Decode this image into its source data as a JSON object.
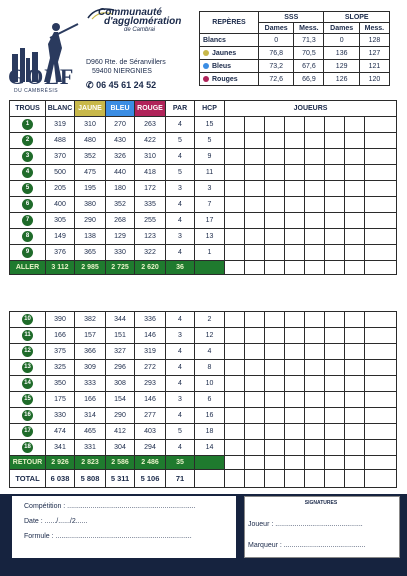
{
  "header": {
    "logo_word": "GOLF",
    "logo_sub": "DU CAMBRÉSIS",
    "community_line1": "Communauté",
    "community_line2": "d'agglomération",
    "community_line3": "de Cambrai",
    "address_line1": "D960 Rte. de Séranvillers",
    "address_line2": "59400 NIERGNIES",
    "phone": "06 45 61 24 52"
  },
  "reperes": {
    "title": "REPÈRES",
    "sss_label": "SSS",
    "slope_label": "SLOPE",
    "dames": "Dames",
    "mess": "Mess.",
    "rows": [
      {
        "name": "Blancs",
        "color": "",
        "sss_dames": "0",
        "sss_mess": "71,3",
        "slope_dames": "0",
        "slope_mess": "128"
      },
      {
        "name": "Jaunes",
        "color": "#c8b84a",
        "sss_dames": "76,8",
        "sss_mess": "70,5",
        "slope_dames": "136",
        "slope_mess": "127"
      },
      {
        "name": "Bleus",
        "color": "#3b8de3",
        "sss_dames": "73,2",
        "sss_mess": "67,6",
        "slope_dames": "129",
        "slope_mess": "121"
      },
      {
        "name": "Rouges",
        "color": "#b0245a",
        "sss_dames": "72,6",
        "sss_mess": "66,9",
        "slope_dames": "126",
        "slope_mess": "120"
      }
    ]
  },
  "scorecard": {
    "headers": {
      "trous": "TROUS",
      "blanc": "BLANC",
      "jaune": "JAUNE",
      "bleu": "BLEU",
      "rouge": "ROUGE",
      "par": "PAR",
      "hcp": "HCP",
      "joueurs": "JOUEURS"
    },
    "front": [
      {
        "hole": "1",
        "blanc": "319",
        "jaune": "310",
        "bleu": "270",
        "rouge": "263",
        "par": "4",
        "hcp": "15"
      },
      {
        "hole": "2",
        "blanc": "488",
        "jaune": "480",
        "bleu": "430",
        "rouge": "422",
        "par": "5",
        "hcp": "5"
      },
      {
        "hole": "3",
        "blanc": "370",
        "jaune": "352",
        "bleu": "326",
        "rouge": "310",
        "par": "4",
        "hcp": "9"
      },
      {
        "hole": "4",
        "blanc": "500",
        "jaune": "475",
        "bleu": "440",
        "rouge": "418",
        "par": "5",
        "hcp": "11"
      },
      {
        "hole": "5",
        "blanc": "205",
        "jaune": "195",
        "bleu": "180",
        "rouge": "172",
        "par": "3",
        "hcp": "3"
      },
      {
        "hole": "6",
        "blanc": "400",
        "jaune": "380",
        "bleu": "352",
        "rouge": "335",
        "par": "4",
        "hcp": "7"
      },
      {
        "hole": "7",
        "blanc": "305",
        "jaune": "290",
        "bleu": "268",
        "rouge": "255",
        "par": "4",
        "hcp": "17"
      },
      {
        "hole": "8",
        "blanc": "149",
        "jaune": "138",
        "bleu": "129",
        "rouge": "123",
        "par": "3",
        "hcp": "13"
      },
      {
        "hole": "9",
        "blanc": "376",
        "jaune": "365",
        "bleu": "330",
        "rouge": "322",
        "par": "4",
        "hcp": "1"
      }
    ],
    "aller": {
      "label": "ALLER",
      "blanc": "3 112",
      "jaune": "2 985",
      "bleu": "2 725",
      "rouge": "2 620",
      "par": "36"
    },
    "back": [
      {
        "hole": "10",
        "blanc": "390",
        "jaune": "382",
        "bleu": "344",
        "rouge": "336",
        "par": "4",
        "hcp": "2"
      },
      {
        "hole": "11",
        "blanc": "166",
        "jaune": "157",
        "bleu": "151",
        "rouge": "146",
        "par": "3",
        "hcp": "12"
      },
      {
        "hole": "12",
        "blanc": "375",
        "jaune": "366",
        "bleu": "327",
        "rouge": "319",
        "par": "4",
        "hcp": "4"
      },
      {
        "hole": "13",
        "blanc": "325",
        "jaune": "309",
        "bleu": "296",
        "rouge": "272",
        "par": "4",
        "hcp": "8"
      },
      {
        "hole": "14",
        "blanc": "350",
        "jaune": "333",
        "bleu": "308",
        "rouge": "293",
        "par": "4",
        "hcp": "10"
      },
      {
        "hole": "15",
        "blanc": "175",
        "jaune": "166",
        "bleu": "154",
        "rouge": "146",
        "par": "3",
        "hcp": "6"
      },
      {
        "hole": "16",
        "blanc": "330",
        "jaune": "314",
        "bleu": "290",
        "rouge": "277",
        "par": "4",
        "hcp": "16"
      },
      {
        "hole": "17",
        "blanc": "474",
        "jaune": "465",
        "bleu": "412",
        "rouge": "403",
        "par": "5",
        "hcp": "18"
      },
      {
        "hole": "18",
        "blanc": "341",
        "jaune": "331",
        "bleu": "304",
        "rouge": "294",
        "par": "4",
        "hcp": "14"
      }
    ],
    "retour": {
      "label": "RETOUR",
      "blanc": "2 926",
      "jaune": "2 823",
      "bleu": "2 586",
      "rouge": "2 486",
      "par": "35"
    },
    "total": {
      "label": "TOTAL",
      "blanc": "6 038",
      "jaune": "5 808",
      "bleu": "5 311",
      "rouge": "5 106",
      "par": "71"
    }
  },
  "footer": {
    "competition": "Compétition : ..................................................................",
    "date": "Date : ....../....../2......",
    "formule": "Formule : ......................................................................",
    "signatures_title": "SIGNATURES",
    "joueur": "Joueur : .............................................",
    "marqueur": "Marqueur : .........................................."
  },
  "colors": {
    "green": "#1f7a2e",
    "navy": "#16233f",
    "jaune": "#c8b84a",
    "bleu": "#3b8de3",
    "rouge": "#b0245a"
  }
}
